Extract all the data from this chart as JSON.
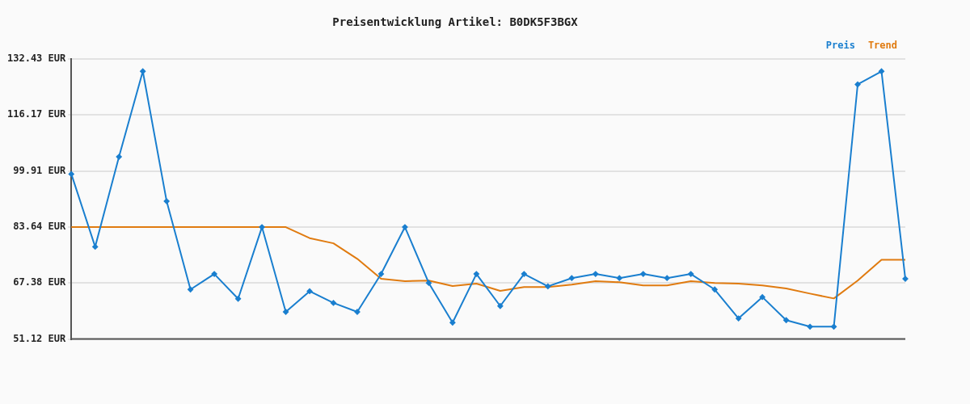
{
  "chart_data": {
    "type": "line",
    "title": "Preisentwicklung Artikel: B0DK5F3BGX",
    "categories": [
      null,
      null,
      null,
      null,
      null,
      null,
      null,
      null,
      null,
      null,
      null,
      null,
      null,
      null,
      null,
      null,
      null,
      null,
      null,
      null,
      null,
      null,
      null,
      null,
      null,
      null,
      null,
      null,
      null,
      null,
      null,
      null,
      null,
      null,
      null,
      null
    ],
    "series": [
      {
        "name": "Preis",
        "color": "#1a7fcf",
        "marker": "diamond",
        "values": [
          99.0,
          77.9,
          104.0,
          128.8,
          91.1,
          65.5,
          70.0,
          62.8,
          83.6,
          59.0,
          65.0,
          61.6,
          59.0,
          70.0,
          83.6,
          67.4,
          55.9,
          70.0,
          60.7,
          70.0,
          66.4,
          68.8,
          70.0,
          68.8,
          70.0,
          68.8,
          70.0,
          65.5,
          57.1,
          63.3,
          56.6,
          54.7,
          54.7,
          125.0,
          128.8,
          68.6
        ]
      },
      {
        "name": "Trend",
        "color": "#e07b10",
        "marker": "none",
        "values": [
          83.6,
          83.6,
          83.6,
          83.6,
          83.6,
          83.6,
          83.6,
          83.6,
          83.6,
          83.6,
          80.4,
          78.9,
          74.4,
          68.6,
          67.9,
          68.1,
          66.5,
          67.2,
          65.1,
          66.2,
          66.2,
          66.9,
          67.9,
          67.6,
          66.7,
          66.7,
          67.9,
          67.4,
          67.2,
          66.7,
          65.8,
          64.3,
          62.9,
          68.1,
          74.1,
          74.1
        ]
      }
    ],
    "ylim": [
      51.12,
      132.43
    ],
    "yticks": [
      {
        "value": 51.12,
        "label": "51.12 EUR"
      },
      {
        "value": 67.38,
        "label": "67.38 EUR"
      },
      {
        "value": 83.64,
        "label": "83.64 EUR"
      },
      {
        "value": 99.91,
        "label": "99.91 EUR"
      },
      {
        "value": 116.17,
        "label": "116.17 EUR"
      },
      {
        "value": 132.43,
        "label": "132.43 EUR"
      }
    ],
    "grid": "y",
    "legend": "top right",
    "line_style": "solid"
  }
}
